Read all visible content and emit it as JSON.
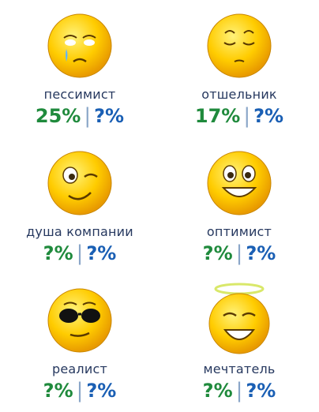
{
  "types": [
    {
      "name": "пессимист",
      "percent": "25%",
      "other": "?%",
      "icon": "crying-face-icon"
    },
    {
      "name": "отшельник",
      "percent": "17%",
      "other": "?%",
      "icon": "sleepy-face-icon"
    },
    {
      "name": "душа компании",
      "percent": "?%",
      "other": "?%",
      "icon": "winking-face-icon"
    },
    {
      "name": "оптимист",
      "percent": "?%",
      "other": "?%",
      "icon": "grinning-face-icon"
    },
    {
      "name": "реалист",
      "percent": "?%",
      "other": "?%",
      "icon": "sunglasses-face-icon"
    },
    {
      "name": "мечтатель",
      "percent": "?%",
      "other": "?%",
      "icon": "halo-face-icon"
    }
  ],
  "colors": {
    "percent_green": "#1f8a3c",
    "question_blue": "#1a5fb4",
    "label_navy": "#26385f"
  }
}
